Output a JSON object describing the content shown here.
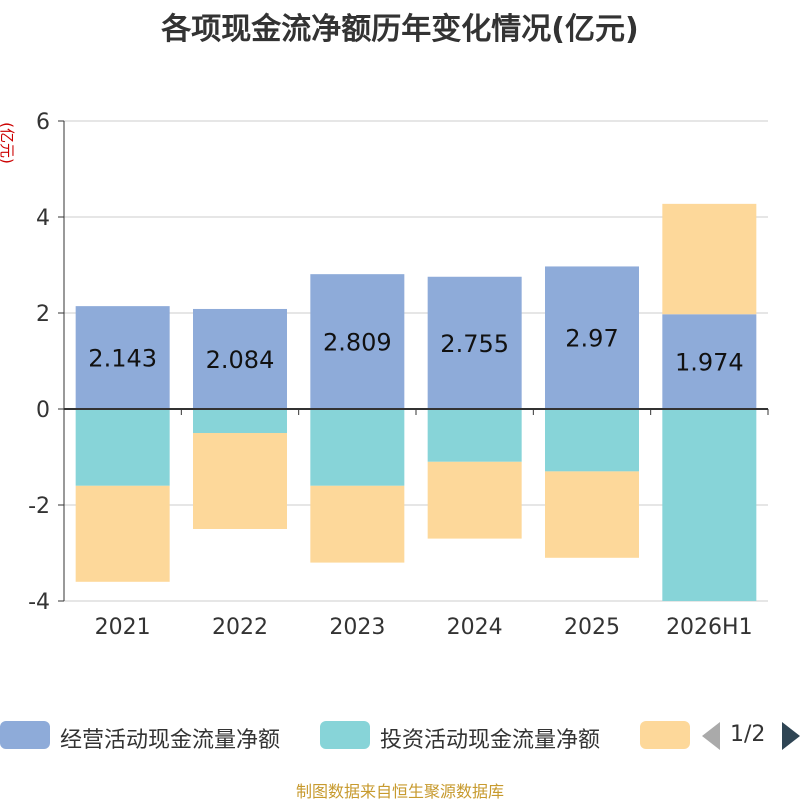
{
  "title": "各项现金流净额历年变化情况(亿元)",
  "source": "制图数据来自恒生聚源数据库",
  "chart_data": {
    "type": "bar",
    "stacked": true,
    "title": "各项现金流净额历年变化情况(亿元)",
    "ylabel": "(亿元)",
    "ylim": [
      -4,
      6
    ],
    "yticks": [
      6,
      4,
      2,
      0,
      -2,
      -4
    ],
    "categories": [
      "2021",
      "2022",
      "2023",
      "2024",
      "2025",
      "2026H1"
    ],
    "grid": true,
    "series": [
      {
        "name": "经营活动现金流量净额",
        "color": "#8eabd9",
        "values": [
          2.143,
          2.084,
          2.809,
          2.755,
          2.97,
          1.974
        ],
        "show_labels": true
      },
      {
        "name": "投资活动现金流量净额",
        "color": "#87d4d8",
        "values": [
          -1.6,
          -0.5,
          -1.6,
          -1.1,
          -1.3,
          -4.0
        ],
        "show_labels": false
      },
      {
        "name": "",
        "color": "#fdd89a",
        "values": [
          -2.0,
          -2.0,
          -1.6,
          -1.6,
          -1.8,
          2.3
        ],
        "show_labels": false
      }
    ]
  },
  "legend": {
    "page": "1/2"
  }
}
